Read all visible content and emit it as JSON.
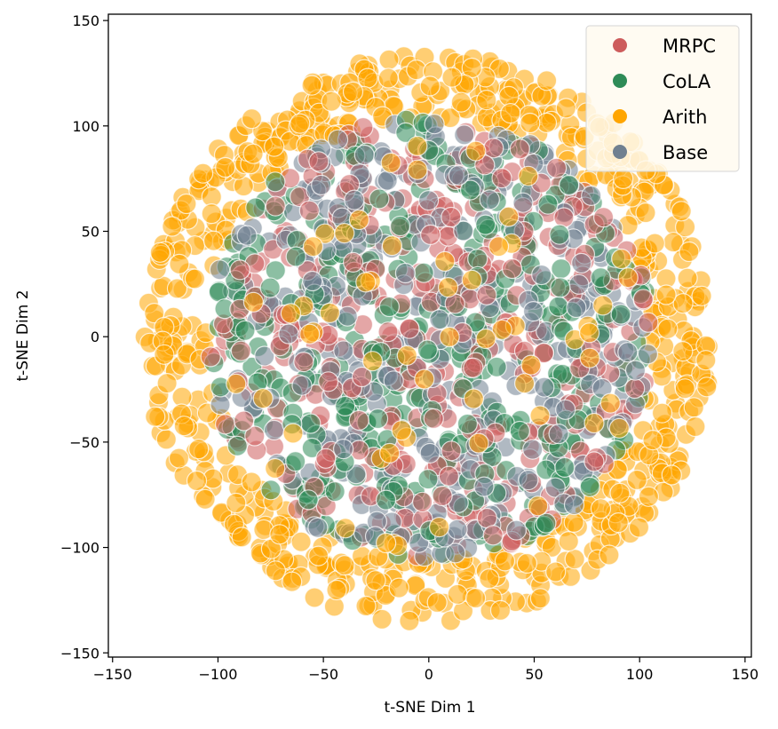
{
  "chart_data": {
    "type": "scatter",
    "title": "",
    "xlabel": "t-SNE Dim 1",
    "ylabel": "t-SNE Dim 2",
    "xlim": [
      -152,
      153
    ],
    "ylim": [
      -152,
      153
    ],
    "x_ticks": [
      -150,
      -100,
      -50,
      0,
      50,
      100,
      150
    ],
    "y_ticks": [
      -150,
      -100,
      -50,
      0,
      50,
      100,
      150
    ],
    "x_tick_labels": [
      "−150",
      "−100",
      "−50",
      "0",
      "50",
      "100",
      "150"
    ],
    "y_tick_labels": [
      "−150",
      "−100",
      "−50",
      "0",
      "50",
      "100",
      "150"
    ],
    "grid": false,
    "legend_position": "top-right",
    "legend": [
      "MRPC",
      "CoLA",
      "Arith",
      "Base"
    ],
    "series": [
      {
        "name": "Arith",
        "color": "#ffa500",
        "distribution": "ring",
        "inner_radius": 105,
        "outer_radius": 135,
        "center": [
          0,
          -1
        ],
        "approx_points": 650
      },
      {
        "name": "MRPC",
        "color": "#cd5c5c",
        "distribution": "disk",
        "outer_radius": 105,
        "center": [
          0,
          -1
        ],
        "approx_points": 400
      },
      {
        "name": "CoLA",
        "color": "#2e8b57",
        "distribution": "disk",
        "outer_radius": 105,
        "center": [
          0,
          -1
        ],
        "approx_points": 400
      },
      {
        "name": "Base",
        "color": "#708090",
        "distribution": "disk",
        "outer_radius": 105,
        "center": [
          0,
          -1
        ],
        "approx_points": 400
      }
    ]
  }
}
